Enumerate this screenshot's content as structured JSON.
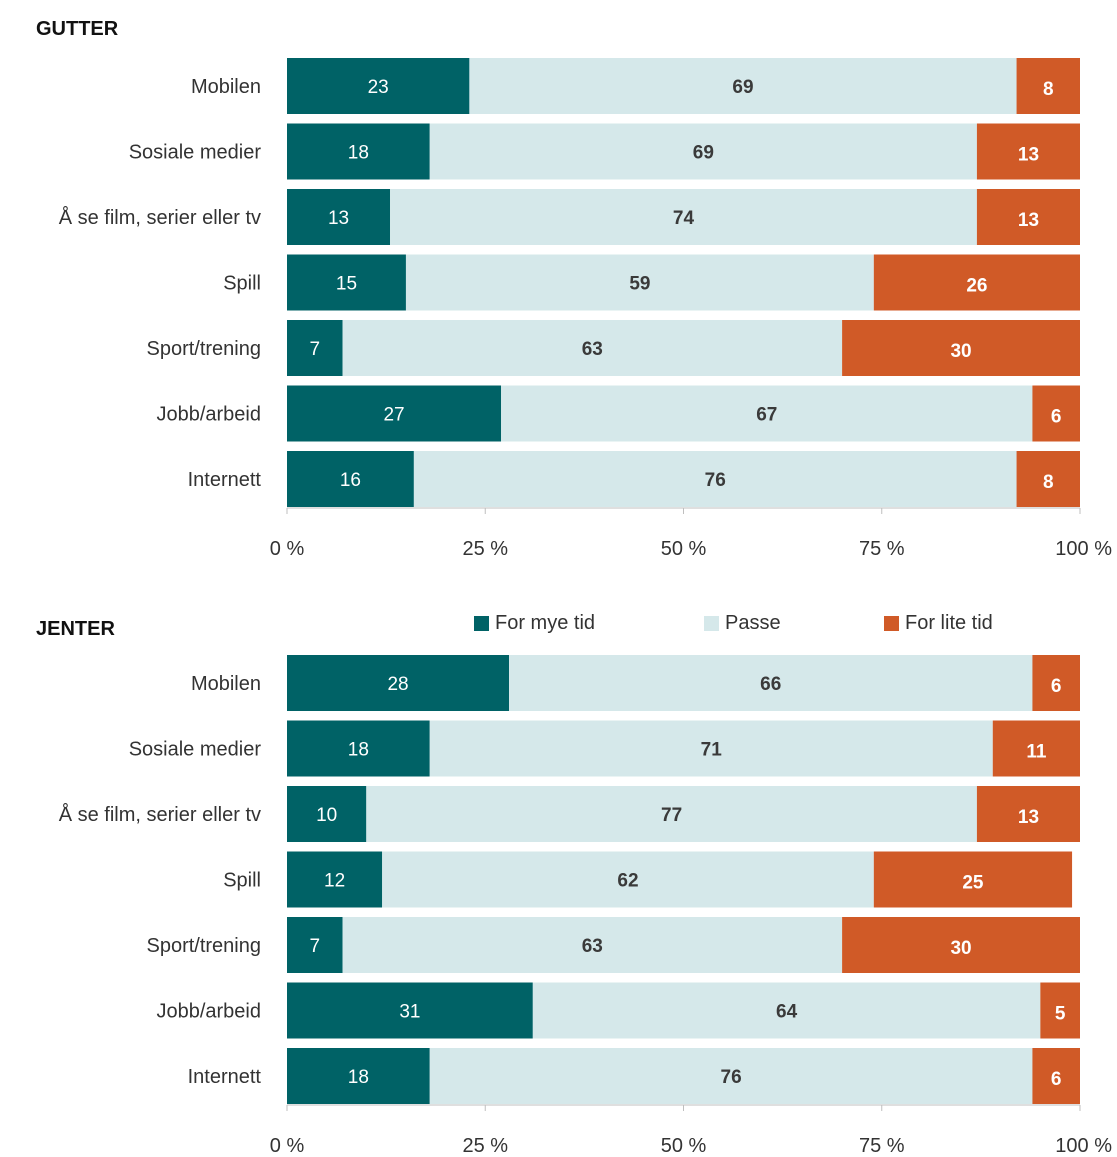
{
  "chart_data": [
    {
      "type": "bar",
      "orientation": "horizontal",
      "stacked": true,
      "title": "GUTTER",
      "categories": [
        "Mobilen",
        "Sosiale medier",
        "Å se film, serier eller tv",
        "Spill",
        "Sport/trening",
        "Jobb/arbeid",
        "Internett"
      ],
      "series": [
        {
          "name": "For mye tid",
          "values": [
            23,
            18,
            13,
            15,
            7,
            27,
            16
          ]
        },
        {
          "name": "Passe",
          "values": [
            69,
            69,
            74,
            59,
            63,
            67,
            76
          ]
        },
        {
          "name": "For lite tid",
          "values": [
            8,
            13,
            13,
            26,
            30,
            6,
            8
          ]
        }
      ],
      "xlim": [
        0,
        100
      ],
      "xticks": [
        "0 %",
        "25 %",
        "50 %",
        "75 %",
        "100 %"
      ],
      "grid": false
    },
    {
      "type": "bar",
      "orientation": "horizontal",
      "stacked": true,
      "title": "JENTER",
      "categories": [
        "Mobilen",
        "Sosiale medier",
        "Å se film, serier eller tv",
        "Spill",
        "Sport/trening",
        "Jobb/arbeid",
        "Internett"
      ],
      "series": [
        {
          "name": "For mye tid",
          "values": [
            28,
            18,
            10,
            12,
            7,
            31,
            18
          ]
        },
        {
          "name": "Passe",
          "values": [
            66,
            71,
            77,
            62,
            63,
            64,
            76
          ]
        },
        {
          "name": "For lite tid",
          "values": [
            6,
            11,
            13,
            25,
            30,
            5,
            6
          ]
        }
      ],
      "xlim": [
        0,
        100
      ],
      "xticks": [
        "0 %",
        "25 %",
        "50 %",
        "75 %",
        "100 %"
      ],
      "grid": false
    }
  ],
  "legend": {
    "placement": "top",
    "items": [
      {
        "label": "For mye tid",
        "color": "#006266"
      },
      {
        "label": "Passe",
        "color": "#d5e8ea"
      },
      {
        "label": "For lite tid",
        "color": "#d05a27"
      }
    ]
  },
  "colors": {
    "for_mye_tid": "#006266",
    "passe": "#d5e8ea",
    "for_lite_tid": "#d05a27",
    "label_on_dark": "#ffffff",
    "label_on_light": "#3a3a3a",
    "axis": "#bfbfbf",
    "text": "#333333"
  }
}
